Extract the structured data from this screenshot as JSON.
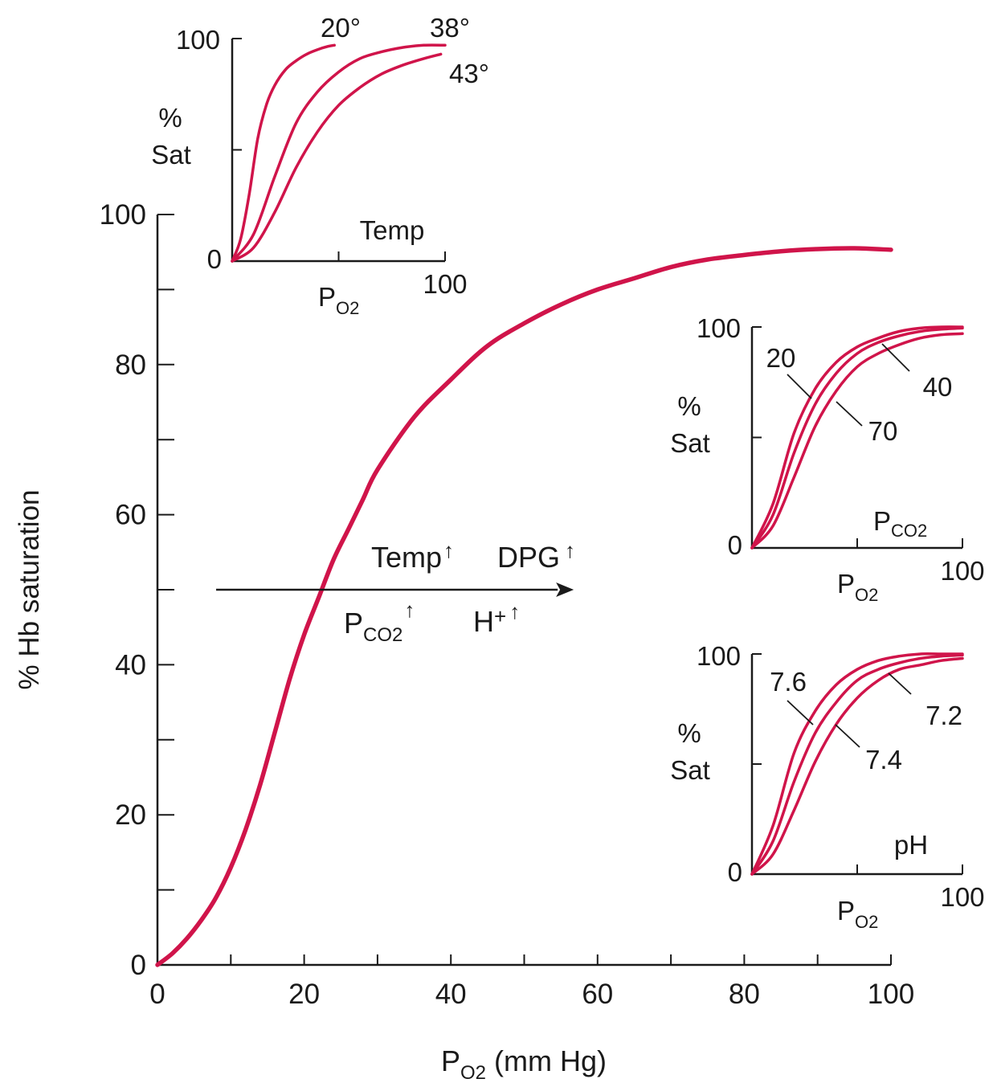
{
  "colors": {
    "curve": "#d0144a",
    "ink": "#1a1a1a"
  },
  "chart_data": [
    {
      "id": "main",
      "type": "line",
      "ylabel": "% Hb saturation",
      "xlabel_main": "P",
      "xlabel_sub": "O2",
      "xlabel_unit": " (mm Hg)",
      "xlim": [
        0,
        100
      ],
      "ylim": [
        0,
        100
      ],
      "x_ticks": [
        "0",
        "20",
        "40",
        "60",
        "80",
        "100"
      ],
      "y_ticks": [
        "0",
        "20",
        "40",
        "60",
        "80",
        "100"
      ],
      "series": [
        {
          "x": [
            0,
            2,
            4,
            6,
            8,
            10,
            12,
            14,
            16,
            18,
            20,
            22,
            24,
            26,
            28,
            30,
            35,
            40,
            45,
            50,
            55,
            60,
            65,
            70,
            75,
            80,
            85,
            90,
            95,
            100
          ],
          "values": [
            0,
            1.5,
            3.5,
            6,
            9,
            13,
            18,
            24,
            31,
            38,
            44,
            49,
            54,
            58,
            62,
            66,
            73,
            78,
            82.5,
            85.5,
            88,
            90,
            91.5,
            93,
            94,
            94.6,
            95.1,
            95.4,
            95.5,
            95.3
          ]
        }
      ],
      "annotations": {
        "temp": "Temp",
        "dpg": "DPG",
        "pco2_main": "P",
        "pco2_sub": "CO2",
        "h": "H",
        "h_plus": "+",
        "up_arrow": "↑"
      },
      "shift_arrow": {
        "from_x": 8,
        "to_x": 55,
        "y": 50
      }
    },
    {
      "id": "inset-temp",
      "type": "line",
      "ylabel_1": "%",
      "ylabel_2": "Sat",
      "xlabel_main": "P",
      "xlabel_sub": "O2",
      "parameter_label": "Temp",
      "x_ticks": {
        "min": "0",
        "max": "100"
      },
      "y_ticks": {
        "min": "0",
        "max": "100"
      },
      "series": [
        {
          "name": "20°",
          "x": [
            0,
            4,
            8,
            12,
            16,
            20,
            25,
            30,
            35,
            40,
            45,
            48
          ],
          "values": [
            0,
            10,
            30,
            55,
            70,
            79,
            86,
            90,
            93,
            95,
            96.5,
            97
          ]
        },
        {
          "name": "38°",
          "x": [
            0,
            10,
            20,
            30,
            40,
            50,
            60,
            70,
            80,
            90,
            100
          ],
          "values": [
            0,
            12,
            38,
            62,
            76,
            85,
            91,
            94,
            96,
            97,
            97
          ]
        },
        {
          "name": "43°",
          "x": [
            0,
            10,
            20,
            30,
            40,
            50,
            60,
            70,
            80,
            90,
            98
          ],
          "values": [
            0,
            6,
            22,
            42,
            58,
            70,
            78,
            84,
            88,
            91,
            93
          ]
        }
      ]
    },
    {
      "id": "inset-pco2",
      "type": "line",
      "ylabel_1": "%",
      "ylabel_2": "Sat",
      "xlabel_main": "P",
      "xlabel_sub": "O2",
      "parameter_main": "P",
      "parameter_sub": "CO2",
      "x_ticks": {
        "min": "0",
        "max": "100"
      },
      "y_ticks": {
        "min": "0",
        "max": "100"
      },
      "series": [
        {
          "name": "20",
          "x": [
            0,
            10,
            20,
            30,
            40,
            50,
            60,
            70,
            80,
            90,
            100
          ],
          "values": [
            0,
            20,
            52,
            72,
            84,
            91,
            95,
            98,
            99.5,
            100,
            100
          ]
        },
        {
          "name": "40",
          "x": [
            0,
            10,
            20,
            30,
            40,
            50,
            60,
            70,
            80,
            90,
            100
          ],
          "values": [
            0,
            15,
            43,
            65,
            79,
            88,
            93,
            96,
            98,
            99,
            99.5
          ]
        },
        {
          "name": "70",
          "x": [
            0,
            10,
            20,
            30,
            40,
            50,
            60,
            70,
            80,
            90,
            100
          ],
          "values": [
            0,
            10,
            32,
            55,
            71,
            82,
            88,
            92,
            95,
            96.5,
            97
          ]
        }
      ]
    },
    {
      "id": "inset-ph",
      "type": "line",
      "ylabel_1": "%",
      "ylabel_2": "Sat",
      "xlabel_main": "P",
      "xlabel_sub": "O2",
      "parameter_label": "pH",
      "x_ticks": {
        "min": "0",
        "max": "100"
      },
      "y_ticks": {
        "min": "0",
        "max": "100"
      },
      "series": [
        {
          "name": "7.6",
          "x": [
            0,
            10,
            20,
            30,
            40,
            50,
            60,
            70,
            80,
            90,
            100
          ],
          "values": [
            0,
            22,
            55,
            74,
            86,
            93,
            97,
            99,
            100,
            100,
            100
          ]
        },
        {
          "name": "7.4",
          "x": [
            0,
            10,
            20,
            30,
            40,
            50,
            60,
            70,
            80,
            90,
            100
          ],
          "values": [
            0,
            15,
            42,
            64,
            78,
            88,
            93,
            96,
            98,
            99,
            99.5
          ]
        },
        {
          "name": "7.2",
          "x": [
            0,
            10,
            20,
            30,
            40,
            50,
            60,
            70,
            80,
            90,
            100
          ],
          "values": [
            0,
            9,
            29,
            51,
            68,
            80,
            88,
            93,
            95,
            97,
            98
          ]
        }
      ]
    }
  ]
}
